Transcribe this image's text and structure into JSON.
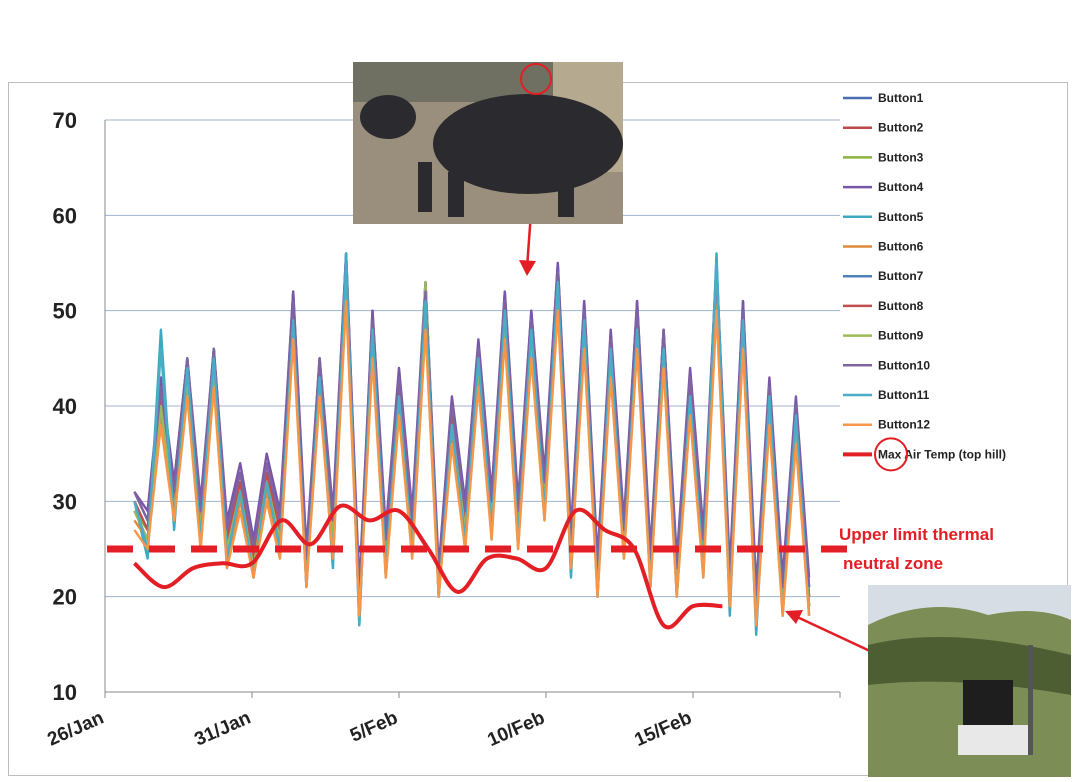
{
  "chart_data": {
    "type": "line",
    "title": "",
    "xlabel": "",
    "ylabel": "",
    "ylim": [
      10,
      70
    ],
    "yticks": [
      10,
      20,
      30,
      40,
      50,
      60,
      70
    ],
    "xlim": [
      "2010-01-26",
      "2010-02-20"
    ],
    "xtick_labels": [
      "26/Jan",
      "31/Jan",
      "5/Feb",
      "10/Feb",
      "15/Feb"
    ],
    "grid": "horizontal",
    "legend": "right",
    "series": [
      {
        "name": "Button1",
        "color": "#4a6fb0",
        "values": [
          31,
          28,
          41,
          32,
          45,
          29,
          46,
          27,
          33,
          25,
          34,
          28,
          52,
          24,
          45,
          28,
          56,
          20,
          50,
          26,
          43,
          28,
          53,
          22,
          40,
          29,
          46,
          30,
          52,
          29,
          50,
          32,
          55,
          26,
          51,
          23,
          47,
          27,
          51,
          24,
          48,
          23,
          43,
          26,
          55,
          22,
          51,
          20,
          42,
          21,
          40,
          21
        ]
      },
      {
        "name": "Button2",
        "color": "#b94a48",
        "values": [
          30,
          27,
          42,
          31,
          44,
          28,
          45,
          26,
          32,
          24,
          33,
          27,
          51,
          23,
          44,
          27,
          55,
          19,
          49,
          25,
          42,
          27,
          52,
          21,
          39,
          28,
          45,
          29,
          51,
          28,
          49,
          31,
          54,
          25,
          50,
          22,
          46,
          26,
          50,
          23,
          47,
          22,
          42,
          25,
          54,
          21,
          50,
          19,
          41,
          20,
          39,
          20
        ]
      },
      {
        "name": "Button3",
        "color": "#8bb43e",
        "values": [
          29,
          27,
          40,
          30,
          43,
          27,
          44,
          25,
          31,
          23,
          32,
          26,
          50,
          22,
          43,
          26,
          54,
          18,
          48,
          24,
          41,
          26,
          51,
          20,
          38,
          27,
          44,
          28,
          50,
          27,
          48,
          30,
          53,
          24,
          49,
          21,
          45,
          25,
          49,
          22,
          46,
          21,
          41,
          24,
          53,
          20,
          49,
          18,
          40,
          19,
          38,
          19
        ]
      },
      {
        "name": "Button4",
        "color": "#7a56a8",
        "values": [
          31,
          29,
          43,
          32,
          45,
          30,
          46,
          28,
          34,
          26,
          35,
          29,
          52,
          25,
          45,
          29,
          56,
          21,
          50,
          27,
          44,
          29,
          53,
          23,
          41,
          30,
          47,
          31,
          52,
          30,
          50,
          33,
          55,
          27,
          51,
          24,
          48,
          28,
          51,
          25,
          48,
          24,
          44,
          27,
          55,
          23,
          51,
          21,
          43,
          22,
          41,
          22
        ]
      },
      {
        "name": "Button5",
        "color": "#3ba9bf",
        "values": [
          30,
          24,
          48,
          27,
          45,
          25,
          46,
          23,
          31,
          22,
          32,
          24,
          50,
          21,
          43,
          23,
          56,
          17,
          49,
          22,
          41,
          24,
          52,
          20,
          38,
          25,
          45,
          26,
          51,
          25,
          48,
          28,
          54,
          22,
          50,
          20,
          46,
          24,
          49,
          21,
          47,
          20,
          41,
          22,
          56,
          18,
          50,
          16,
          42,
          18,
          40,
          18
        ]
      },
      {
        "name": "Button6",
        "color": "#e08a3c",
        "values": [
          28,
          26,
          39,
          29,
          42,
          26,
          43,
          24,
          30,
          23,
          31,
          25,
          48,
          22,
          42,
          25,
          52,
          19,
          46,
          23,
          40,
          25,
          49,
          21,
          37,
          26,
          43,
          27,
          48,
          26,
          46,
          29,
          51,
          24,
          47,
          21,
          44,
          25,
          47,
          22,
          45,
          21,
          40,
          23,
          51,
          20,
          47,
          18,
          39,
          19,
          37,
          19
        ]
      },
      {
        "name": "Button7",
        "color": "#4f81bd",
        "values": [
          29,
          26,
          40,
          30,
          43,
          27,
          44,
          25,
          31,
          23,
          32,
          26,
          49,
          23,
          43,
          26,
          53,
          19,
          47,
          24,
          41,
          26,
          50,
          21,
          38,
          27,
          44,
          28,
          49,
          27,
          47,
          30,
          52,
          24,
          48,
          22,
          45,
          26,
          48,
          23,
          46,
          22,
          41,
          24,
          52,
          20,
          48,
          18,
          40,
          19,
          38,
          19
        ]
      },
      {
        "name": "Button8",
        "color": "#c0504d",
        "values": [
          30,
          27,
          41,
          30,
          44,
          28,
          45,
          26,
          32,
          24,
          33,
          27,
          50,
          23,
          44,
          27,
          54,
          19,
          48,
          25,
          42,
          27,
          51,
          22,
          39,
          28,
          45,
          29,
          50,
          28,
          48,
          31,
          53,
          25,
          49,
          22,
          46,
          26,
          49,
          23,
          47,
          22,
          42,
          25,
          53,
          21,
          49,
          19,
          41,
          20,
          39,
          20
        ]
      },
      {
        "name": "Button9",
        "color": "#9bbb59",
        "values": [
          29,
          26,
          40,
          29,
          43,
          27,
          44,
          25,
          31,
          23,
          32,
          26,
          49,
          22,
          43,
          26,
          53,
          18,
          47,
          24,
          41,
          26,
          53,
          21,
          38,
          27,
          44,
          28,
          49,
          27,
          47,
          30,
          52,
          24,
          48,
          21,
          45,
          25,
          48,
          22,
          46,
          21,
          41,
          24,
          52,
          20,
          48,
          18,
          40,
          19,
          38,
          19
        ]
      },
      {
        "name": "Button10",
        "color": "#8064a2",
        "values": [
          31,
          28,
          42,
          31,
          45,
          29,
          46,
          27,
          33,
          25,
          34,
          28,
          51,
          24,
          45,
          28,
          55,
          20,
          49,
          26,
          43,
          28,
          52,
          22,
          40,
          29,
          46,
          30,
          51,
          29,
          49,
          32,
          54,
          26,
          50,
          23,
          47,
          27,
          50,
          24,
          48,
          23,
          43,
          26,
          54,
          22,
          50,
          20,
          42,
          21,
          40,
          21
        ]
      },
      {
        "name": "Button11",
        "color": "#4bacc6",
        "values": [
          30,
          25,
          46,
          28,
          44,
          26,
          45,
          24,
          31,
          22,
          32,
          25,
          49,
          21,
          43,
          24,
          55,
          17,
          48,
          23,
          41,
          25,
          51,
          20,
          38,
          26,
          45,
          27,
          50,
          26,
          48,
          29,
          53,
          23,
          49,
          20,
          46,
          24,
          48,
          21,
          46,
          20,
          41,
          23,
          55,
          19,
          49,
          17,
          41,
          18,
          39,
          18
        ]
      },
      {
        "name": "Button12",
        "color": "#f79646",
        "values": [
          27,
          25,
          38,
          28,
          41,
          25,
          42,
          23,
          29,
          22,
          30,
          24,
          47,
          21,
          41,
          24,
          51,
          18,
          45,
          22,
          39,
          24,
          48,
          20,
          36,
          25,
          42,
          26,
          47,
          25,
          45,
          28,
          50,
          23,
          46,
          20,
          43,
          24,
          46,
          21,
          44,
          20,
          39,
          22,
          50,
          19,
          46,
          17,
          38,
          18,
          36,
          18
        ]
      },
      {
        "name": "Max Air Temp (top hill)",
        "color": "#e31e24",
        "x": [
          "2010-01-27",
          "2010-01-28",
          "2010-01-29",
          "2010-01-30",
          "2010-01-31",
          "2010-02-01",
          "2010-02-02",
          "2010-02-03",
          "2010-02-04",
          "2010-02-05",
          "2010-02-06",
          "2010-02-07",
          "2010-02-08",
          "2010-02-09",
          "2010-02-10",
          "2010-02-11",
          "2010-02-12",
          "2010-02-13",
          "2010-02-14",
          "2010-02-15",
          "2010-02-16"
        ],
        "values": [
          23.5,
          21,
          23,
          23.5,
          23.5,
          28,
          25.5,
          29.5,
          28,
          29,
          25,
          20.5,
          24,
          24,
          23,
          29,
          27,
          25,
          17,
          19,
          19
        ]
      }
    ],
    "annotations": [
      {
        "type": "hline",
        "y": 25,
        "style": "dashed",
        "color": "#e31e24",
        "label": "Upper limit thermal neutral zone"
      }
    ]
  }
}
